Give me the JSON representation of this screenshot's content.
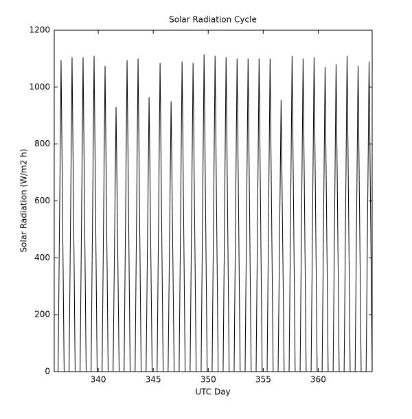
{
  "chart_data": {
    "type": "line",
    "title": "Solar Radiation Cycle",
    "x_label": "UTC Day",
    "y_label": "Solar Radiation (W/m2 h)",
    "x": [
      336.35,
      336.62,
      336.9,
      337.35,
      337.62,
      337.9,
      338.35,
      338.62,
      338.9,
      339.35,
      339.62,
      339.9,
      340.35,
      340.62,
      340.9,
      341.35,
      341.62,
      341.9,
      342.35,
      342.62,
      342.9,
      343.35,
      343.62,
      343.9,
      344.35,
      344.62,
      344.9,
      345.35,
      345.62,
      345.9,
      346.35,
      346.62,
      346.9,
      347.35,
      347.62,
      347.9,
      348.35,
      348.62,
      348.9,
      349.35,
      349.62,
      349.9,
      350.35,
      350.62,
      350.9,
      351.35,
      351.62,
      351.9,
      352.35,
      352.62,
      352.9,
      353.35,
      353.62,
      353.9,
      354.35,
      354.62,
      354.9,
      355.35,
      355.62,
      355.9,
      356.35,
      356.62,
      356.9,
      357.35,
      357.62,
      357.9,
      358.35,
      358.62,
      358.9,
      359.35,
      359.62,
      359.9,
      360.35,
      360.62,
      360.9,
      361.35,
      361.62,
      361.9,
      362.35,
      362.62,
      362.9,
      363.35,
      363.62,
      363.9,
      364.35,
      364.62,
      364.9
    ],
    "series": [
      {
        "name": "Solar Radiation",
        "color": "#000000",
        "values": [
          0,
          1095,
          0,
          0,
          1105,
          0,
          0,
          1105,
          0,
          0,
          1110,
          0,
          0,
          1075,
          0,
          0,
          930,
          0,
          0,
          1095,
          0,
          0,
          1100,
          0,
          0,
          965,
          0,
          0,
          1085,
          0,
          0,
          950,
          0,
          0,
          1090,
          0,
          0,
          1085,
          0,
          0,
          1115,
          0,
          0,
          1110,
          0,
          0,
          1105,
          0,
          0,
          1100,
          0,
          0,
          1100,
          0,
          0,
          1100,
          0,
          0,
          1100,
          0,
          0,
          955,
          0,
          0,
          1110,
          0,
          0,
          1100,
          0,
          0,
          1105,
          0,
          0,
          1070,
          0,
          0,
          1080,
          0,
          0,
          1110,
          0,
          0,
          1075,
          0,
          0,
          1090,
          0
        ]
      }
    ],
    "xlim": [
      336,
      364.9
    ],
    "ylim": [
      0,
      1200
    ],
    "xticks": [
      340,
      345,
      350,
      355,
      360
    ],
    "yticks": [
      0,
      200,
      400,
      600,
      800,
      1000,
      1200
    ]
  }
}
